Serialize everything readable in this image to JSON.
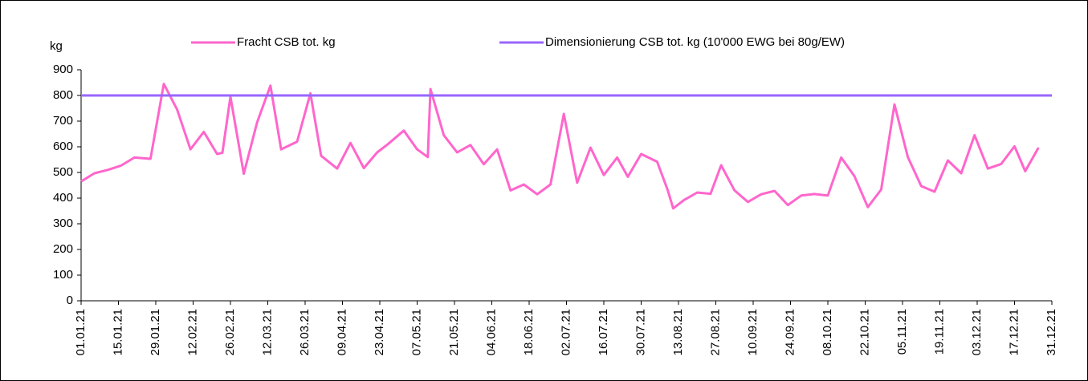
{
  "chart_data": {
    "type": "line",
    "y_label": "kg",
    "ylim": [
      0,
      900
    ],
    "yticks": [
      0,
      100,
      200,
      300,
      400,
      500,
      600,
      700,
      800,
      900
    ],
    "xlim": [
      "01.01.21",
      "31.12.21"
    ],
    "xticks": [
      "01.01.21",
      "15.01.21",
      "29.01.21",
      "12.02.21",
      "26.02.21",
      "12.03.21",
      "26.03.21",
      "09.04.21",
      "23.04.21",
      "07.05.21",
      "21.05.21",
      "04.06.21",
      "18.06.21",
      "02.07.21",
      "16.07.21",
      "30.07.21",
      "13.08.21",
      "27.08.21",
      "10.09.21",
      "24.09.21",
      "08.10.21",
      "22.10.21",
      "05.11.21",
      "19.11.21",
      "03.12.21",
      "17.12.21",
      "31.12.21"
    ],
    "series": [
      {
        "name": "Fracht CSB tot. kg",
        "color": "#ff66cc",
        "x": [
          "01.01.21",
          "06.01.21",
          "11.01.21",
          "16.01.21",
          "21.01.21",
          "27.01.21",
          "01.02.21",
          "06.02.21",
          "11.02.21",
          "16.02.21",
          "21.02.21",
          "23.02.21",
          "26.02.21",
          "03.03.21",
          "08.03.21",
          "13.03.21",
          "17.03.21",
          "23.03.21",
          "28.03.21",
          "01.04.21",
          "07.04.21",
          "12.04.21",
          "17.04.21",
          "22.04.21",
          "26.04.21",
          "02.05.21",
          "07.05.21",
          "11.05.21",
          "12.05.21",
          "17.05.21",
          "22.05.21",
          "27.05.21",
          "01.06.21",
          "06.06.21",
          "11.06.21",
          "16.06.21",
          "21.06.21",
          "26.06.21",
          "01.07.21",
          "06.07.21",
          "11.07.21",
          "16.07.21",
          "21.07.21",
          "25.07.21",
          "30.07.21",
          "05.08.21",
          "09.08.21",
          "11.08.21",
          "15.08.21",
          "20.08.21",
          "25.08.21",
          "29.08.21",
          "03.09.21",
          "08.09.21",
          "13.09.21",
          "18.09.21",
          "23.09.21",
          "28.09.21",
          "03.10.21",
          "08.10.21",
          "13.10.21",
          "18.10.21",
          "23.10.21",
          "28.10.21",
          "02.11.21",
          "07.11.21",
          "12.11.21",
          "17.11.21",
          "22.11.21",
          "27.11.21",
          "02.12.21",
          "07.12.21",
          "12.12.21",
          "17.12.21",
          "21.12.21",
          "26.12.21"
        ],
        "values": [
          465,
          497,
          510,
          527,
          558,
          553,
          845,
          745,
          590,
          658,
          572,
          577,
          795,
          495,
          695,
          838,
          590,
          620,
          808,
          565,
          515,
          615,
          517,
          578,
          610,
          663,
          590,
          560,
          825,
          645,
          578,
          607,
          532,
          590,
          430,
          453,
          415,
          453,
          728,
          460,
          597,
          490,
          558,
          483,
          572,
          542,
          430,
          360,
          392,
          422,
          417,
          528,
          430,
          385,
          415,
          428,
          373,
          410,
          416,
          410,
          558,
          485,
          365,
          433,
          765,
          560,
          447,
          425,
          547,
          497,
          645,
          515,
          533,
          602,
          505,
          597
        ]
      },
      {
        "name": "Dimensionierung CSB tot. kg (10'000 EWG bei 80g/EW)",
        "color": "#9966ff",
        "x": [
          "01.01.21",
          "31.12.21"
        ],
        "values": [
          800,
          800
        ]
      }
    ]
  }
}
